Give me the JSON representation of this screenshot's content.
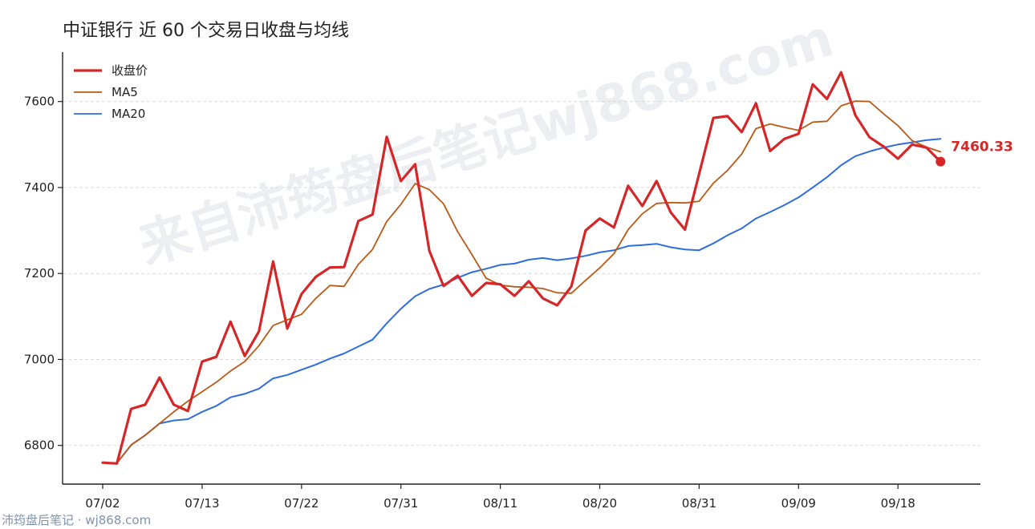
{
  "title": "中证银行 近 60 个交易日收盘与均线",
  "footer": "沛筠盘后笔记 · wj868.com",
  "watermark": "来自沛筠盘后笔记wj868.com",
  "chart_data": {
    "type": "line",
    "title": "中证银行 近 60 个交易日收盘与均线",
    "xlabel": "",
    "ylabel": "",
    "ylim": [
      6710,
      7715
    ],
    "yticks": [
      6800,
      7000,
      7200,
      7400,
      7600
    ],
    "xtick_labels": [
      "07/02",
      "07/13",
      "07/22",
      "07/31",
      "08/11",
      "08/20",
      "08/31",
      "09/09",
      "09/18"
    ],
    "xtick_index": [
      0,
      7,
      14,
      21,
      28,
      35,
      42,
      49,
      56
    ],
    "n_points": 60,
    "grid": "horizontal dashed",
    "legend_position": "top-left",
    "last_value_label": "7460.33",
    "series": [
      {
        "name": "收盘价",
        "color": "#d62728",
        "values": [
          6760,
          6758,
          6885,
          6895,
          6958,
          6895,
          6880,
          6995,
          7006,
          7088,
          7008,
          7065,
          7228,
          7072,
          7152,
          7192,
          7214,
          7215,
          7322,
          7337,
          7518,
          7415,
          7454,
          7253,
          7171,
          7195,
          7148,
          7178,
          7175,
          7148,
          7182,
          7142,
          7126,
          7170,
          7300,
          7328,
          7307,
          7404,
          7357,
          7415,
          7342,
          7302,
          7432,
          7562,
          7566,
          7529,
          7596,
          7485,
          7513,
          7525,
          7640,
          7606,
          7668,
          7568,
          7517,
          7495,
          7467,
          7500,
          7493,
          7460.33
        ]
      },
      {
        "name": "MA5",
        "color": "#bb5a15",
        "values": [
          6760,
          6759,
          6801,
          6824,
          6851,
          6878,
          6903,
          6925,
          6947,
          6973,
          6995,
          7032,
          7079,
          7092,
          7105,
          7142,
          7172,
          7170,
          7221,
          7256,
          7321,
          7361,
          7409,
          7395,
          7362,
          7297,
          7244,
          7189,
          7173,
          7169,
          7168,
          7165,
          7155,
          7154,
          7184,
          7213,
          7246,
          7302,
          7339,
          7363,
          7365,
          7364,
          7368,
          7410,
          7440,
          7478,
          7537,
          7548,
          7540,
          7533,
          7552,
          7554,
          7590,
          7601,
          7600,
          7571,
          7544,
          7509,
          7494,
          7483
        ]
      },
      {
        "name": "MA20",
        "color": "#2f6ddd",
        "values": [
          6760,
          6759,
          6801,
          6824,
          6851,
          6858,
          6861,
          6878,
          6892,
          6912,
          6920,
          6932,
          6956,
          6964,
          6976,
          6988,
          7002,
          7014,
          7030,
          7046,
          7084,
          7118,
          7147,
          7164,
          7174,
          7190,
          7203,
          7211,
          7220,
          7223,
          7232,
          7236,
          7231,
          7235,
          7241,
          7249,
          7254,
          7264,
          7266,
          7269,
          7261,
          7256,
          7254,
          7270,
          7289,
          7305,
          7328,
          7343,
          7359,
          7377,
          7400,
          7424,
          7452,
          7473,
          7484,
          7493,
          7500,
          7505,
          7510,
          7513
        ]
      }
    ]
  }
}
